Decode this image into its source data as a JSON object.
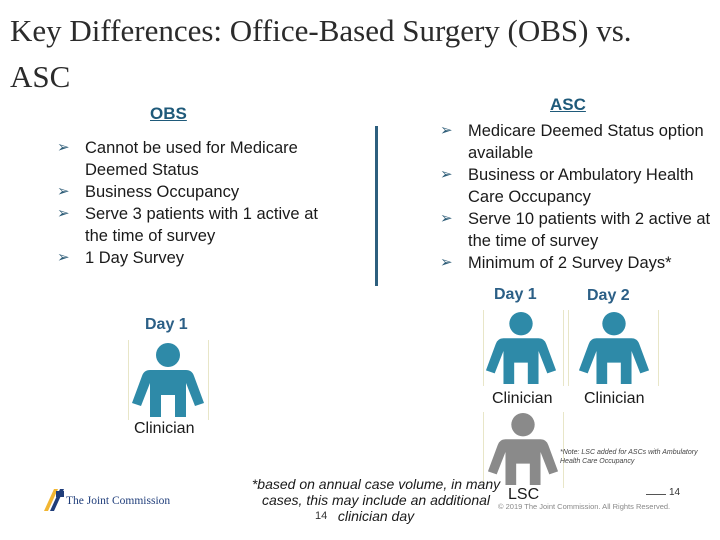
{
  "title": "Key Differences: Office-Based Surgery (OBS) vs. ASC",
  "obs": {
    "heading": "OBS",
    "bullets": [
      "Cannot be used for Medicare Deemed Status",
      "Business Occupancy",
      "Serve 3 patients with 1 active at the time of survey",
      "1 Day Survey"
    ],
    "day_label": "Day 1",
    "clinician_label": "Clinician"
  },
  "asc": {
    "heading": "ASC",
    "bullets": [
      "Medicare Deemed Status option available",
      "Business or Ambulatory Health Care Occupancy",
      "Serve 10 patients with 2 active at the time of survey",
      "Minimum of 2 Survey Days*"
    ],
    "day1_label": "Day 1",
    "day2_label": "Day 2",
    "clinician1_label": "Clinician",
    "clinician2_label": "Clinician",
    "lsc_label": "LSC",
    "note": "*Note: LSC added for ASCs with Ambulatory Health Care Occupancy"
  },
  "footnote": "*based on annual case volume, in many cases, this may include an additional clinician day",
  "page_number": "14",
  "slide_number": "14",
  "copyright": "© 2019 The Joint Commission. All Rights Reserved.",
  "logo_text": "The Joint Commission",
  "colors": {
    "person": "#2e8aa8",
    "person_gray": "#8a8a8a",
    "heading": "#1f5a7a",
    "divider": "#2d5f7e"
  },
  "icons": {
    "bullet": "arrow-bullet-icon",
    "person": "person-icon",
    "logo": "joint-commission-logo-icon"
  }
}
